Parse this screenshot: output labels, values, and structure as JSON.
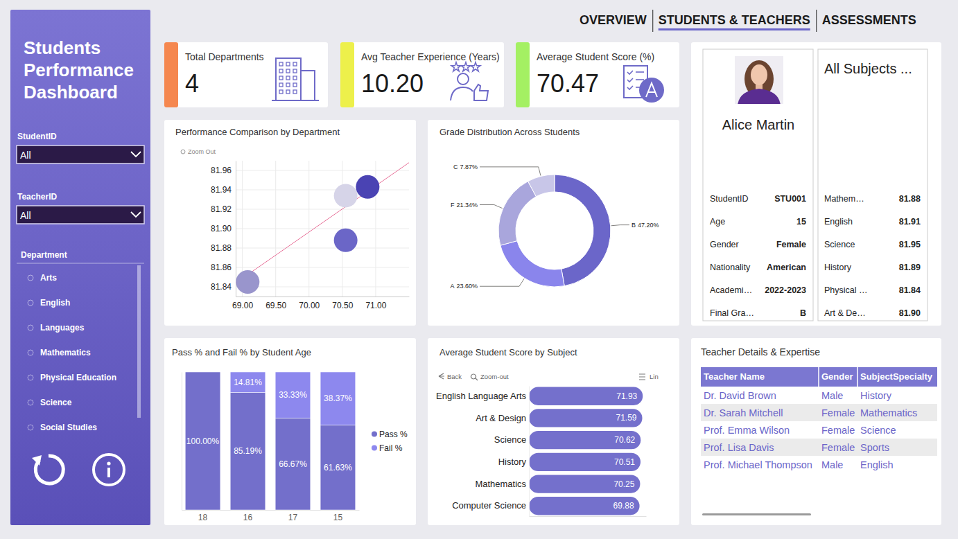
{
  "header": {
    "title": "Students Performance Dashboard",
    "tabs": [
      {
        "label": "OVERVIEW",
        "active": false
      },
      {
        "label": "STUDENTS & TEACHERS",
        "active": true
      },
      {
        "label": "ASSESSMENTS",
        "active": false
      }
    ]
  },
  "filters": [
    {
      "label": "StudentID",
      "value": "All"
    },
    {
      "label": "TeacherID",
      "value": "All"
    }
  ],
  "department_slicer": {
    "title": "Department",
    "items": [
      "Arts",
      "English",
      "Languages",
      "Mathematics",
      "Physical Education",
      "Science",
      "Social Studies"
    ]
  },
  "kpis": [
    {
      "label": "Total Departments",
      "value": "4",
      "color": "#f5874f"
    },
    {
      "label": "Avg Teacher Experience (Years)",
      "value": "10.20",
      "color": "#edf04b"
    },
    {
      "label": "Average Student Score (%)",
      "value": "70.47",
      "color": "#a4f063"
    }
  ],
  "chart_data": [
    {
      "type": "scatter",
      "title": "Performance Comparison by Department",
      "x": [
        69.08,
        70.55,
        70.55,
        70.88
      ],
      "values": [
        81.845,
        81.888,
        81.934,
        81.943
      ],
      "colors": [
        "#9995cc",
        "#6b66c7",
        "#d6d4e8",
        "#4a43b3"
      ],
      "marker": "circle",
      "xlim": [
        68.9,
        71.5
      ],
      "ylim": [
        81.83,
        81.97
      ],
      "xticks": [
        {
          "value": 69,
          "label": "69.00"
        },
        {
          "value": 69.5,
          "label": "69.50"
        },
        {
          "value": 70,
          "label": "70.00"
        },
        {
          "value": 70.5,
          "label": "70.50"
        },
        {
          "value": 71,
          "label": "71.00"
        }
      ],
      "yticks": [
        81.84,
        81.86,
        81.88,
        {
          "value": 81.9,
          "label": "81.90"
        },
        81.92,
        81.94,
        81.96
      ],
      "grid": true,
      "trend_line": {
        "x": [
          68.9,
          71.5
        ],
        "y": [
          81.844,
          81.968
        ],
        "color": "#e8729a"
      },
      "toolbar": [
        "Zoom Out"
      ]
    },
    {
      "type": "donut",
      "title": "Grade Distribution Across Students",
      "categories": [
        "B",
        "A",
        "F",
        "C"
      ],
      "values": [
        47.2,
        23.6,
        21.34,
        7.87
      ],
      "value_labels": [
        "47.20%",
        "23.60%",
        "21.34%",
        "7.87%"
      ],
      "colors": [
        "#6b66c9",
        "#8a85ec",
        "#a9a6dc",
        "#c8c6e8"
      ],
      "data_labels": true
    },
    {
      "type": "bar",
      "title": "Pass % and Fail % by Student Age",
      "categories": [
        "18",
        "16",
        "17",
        "15"
      ],
      "series": [
        {
          "name": "Pass %",
          "color": "#736fcb",
          "values": [
            100,
            85.19,
            66.67,
            61.63
          ],
          "value_labels": [
            "100.00%",
            "85.19%",
            "66.67%",
            "61.63%"
          ]
        },
        {
          "name": "Fail %",
          "color": "#8d88ee",
          "values": [
            0,
            14.81,
            33.33,
            38.37
          ],
          "value_labels": [
            null,
            "14.81%",
            "33.33%",
            "38.37%"
          ]
        }
      ],
      "stacked": true,
      "ylim": [
        0,
        100
      ],
      "data_labels": true,
      "legend": "right",
      "tick_labels": "x"
    },
    {
      "type": "bar",
      "orientation": "horizontal",
      "title": "Average Student Score by Subject",
      "categories": [
        "English Language Arts",
        "Art & Design",
        "Science",
        "History",
        "Mathematics",
        "Computer Science"
      ],
      "values": [
        71.93,
        71.59,
        70.62,
        70.51,
        70.25,
        69.88
      ],
      "color": "#7470cc",
      "xlim": [
        0,
        74
      ],
      "data_labels": true,
      "tick_labels": "y",
      "toolbar": [
        "Back",
        "Zoom-out",
        "Lin"
      ]
    }
  ],
  "student_card": {
    "name": "Alice Martin",
    "fields": [
      {
        "label": "StudentID",
        "value": "STU001"
      },
      {
        "label": "Age",
        "value": "15"
      },
      {
        "label": "Gender",
        "value": "Female"
      },
      {
        "label": "Nationality",
        "value": "American"
      },
      {
        "label": "Academi…",
        "value": "2022-2023"
      },
      {
        "label": "Final Gra…",
        "value": "B"
      }
    ]
  },
  "subject_card": {
    "title": "All Subjects ...",
    "rows": [
      {
        "label": "Mathem…",
        "value": "81.88"
      },
      {
        "label": "English",
        "value": "81.91"
      },
      {
        "label": "Science",
        "value": "81.95"
      },
      {
        "label": "History",
        "value": "81.89"
      },
      {
        "label": "Physical …",
        "value": "81.84"
      },
      {
        "label": "Art & De…",
        "value": "81.90"
      }
    ]
  },
  "teacher_table": {
    "title": "Teacher Details & Expertise",
    "columns": [
      "Teacher Name",
      "Gender",
      "SubjectSpecialty"
    ],
    "rows": [
      [
        "Dr. David Brown",
        "Male",
        "History"
      ],
      [
        "Dr. Sarah Mitchell",
        "Female",
        "Mathematics"
      ],
      [
        "Prof. Emma Wilson",
        "Female",
        "Science"
      ],
      [
        "Prof. Lisa Davis",
        "Female",
        "Sports"
      ],
      [
        "Prof. Michael Thompson",
        "Male",
        "English"
      ]
    ]
  }
}
